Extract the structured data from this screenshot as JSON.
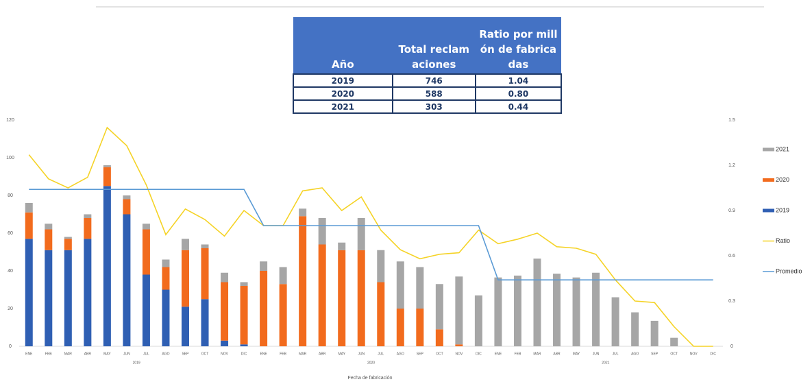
{
  "table": {
    "header": [
      "Año",
      "Total reclamaciones",
      "Ratio por millón de fabricadas"
    ],
    "rows": [
      [
        "2019",
        "746",
        "1.04"
      ],
      [
        "2020",
        "588",
        "0.80"
      ],
      [
        "2021",
        "303",
        "0.44"
      ]
    ]
  },
  "chart_data": {
    "type": "bar",
    "stacked": true,
    "xlabel": "Fecha de fabricación",
    "categories": [
      "ENE",
      "FEB",
      "MAR",
      "ABR",
      "MAY",
      "JUN",
      "JUL",
      "AGO",
      "SEP",
      "OCT",
      "NOV",
      "DIC",
      "ENE",
      "FEB",
      "MAR",
      "ABR",
      "MAY",
      "JUN",
      "JUL",
      "AGO",
      "SEP",
      "OCT",
      "NOV",
      "DIC",
      "ENE",
      "FEB",
      "MAR",
      "ABR",
      "MAY",
      "JUN",
      "JUL",
      "AGO",
      "SEP",
      "OCT",
      "NOV",
      "DIC"
    ],
    "groups": [
      "2019",
      "2020",
      "2021"
    ],
    "series": [
      {
        "name": "2019",
        "color": "#2f5fb3",
        "values": [
          57,
          51,
          51,
          57,
          85,
          70,
          38,
          30,
          21,
          25,
          3,
          1,
          0,
          0,
          0,
          0,
          0,
          0,
          0,
          0,
          0,
          0,
          0,
          0,
          0,
          0,
          0,
          0,
          0,
          0,
          0,
          0,
          0,
          0,
          0,
          0
        ]
      },
      {
        "name": "2020",
        "color": "#f26b1d",
        "values": [
          14,
          11,
          6,
          11,
          10,
          8,
          24,
          12,
          30,
          27,
          31,
          31,
          40,
          33,
          69,
          54,
          51,
          51,
          34,
          20,
          20,
          9,
          1,
          0,
          0,
          0,
          0,
          0,
          0,
          0,
          0,
          0,
          0,
          0,
          0,
          0
        ]
      },
      {
        "name": "2021",
        "color": "#a6a6a6",
        "values": [
          5,
          3,
          1,
          2,
          1,
          2,
          3,
          4,
          6,
          2,
          5,
          2,
          5,
          9,
          4,
          14,
          4,
          17,
          17,
          25,
          22,
          24,
          36,
          27,
          36.5,
          37.5,
          46.5,
          38.5,
          36.5,
          39,
          26,
          18,
          13.5,
          4.5,
          0,
          0
        ]
      },
      {
        "name": "Ratio",
        "type": "line",
        "axis": "y2",
        "color": "#f5d327",
        "values": [
          1.27,
          1.11,
          1.05,
          1.12,
          1.45,
          1.33,
          1.07,
          0.74,
          0.91,
          0.84,
          0.73,
          0.9,
          0.8,
          0.8,
          1.03,
          1.05,
          0.9,
          0.99,
          0.77,
          0.64,
          0.58,
          0.61,
          0.62,
          0.77,
          0.68,
          0.71,
          0.75,
          0.66,
          0.65,
          0.61,
          0.44,
          0.3,
          0.29,
          0.13,
          0,
          0
        ]
      },
      {
        "name": "Promedio",
        "type": "line",
        "axis": "y2",
        "color": "#5b9bd5",
        "values": [
          1.04,
          1.04,
          1.04,
          1.04,
          1.04,
          1.04,
          1.04,
          1.04,
          1.04,
          1.04,
          1.04,
          1.04,
          0.8,
          0.8,
          0.8,
          0.8,
          0.8,
          0.8,
          0.8,
          0.8,
          0.8,
          0.8,
          0.8,
          0.8,
          0.44,
          0.44,
          0.44,
          0.44,
          0.44,
          0.44,
          0.44,
          0.44,
          0.44,
          0.44,
          0.44,
          0.44
        ]
      }
    ],
    "ylim": [
      0,
      120
    ],
    "yticks": [
      0,
      20,
      40,
      60,
      80,
      100,
      120
    ],
    "y2lim": [
      0,
      1.5
    ],
    "y2ticks": [
      0,
      0.3,
      0.6,
      0.9,
      1.2,
      1.5
    ],
    "grid": false,
    "legend": "right"
  }
}
